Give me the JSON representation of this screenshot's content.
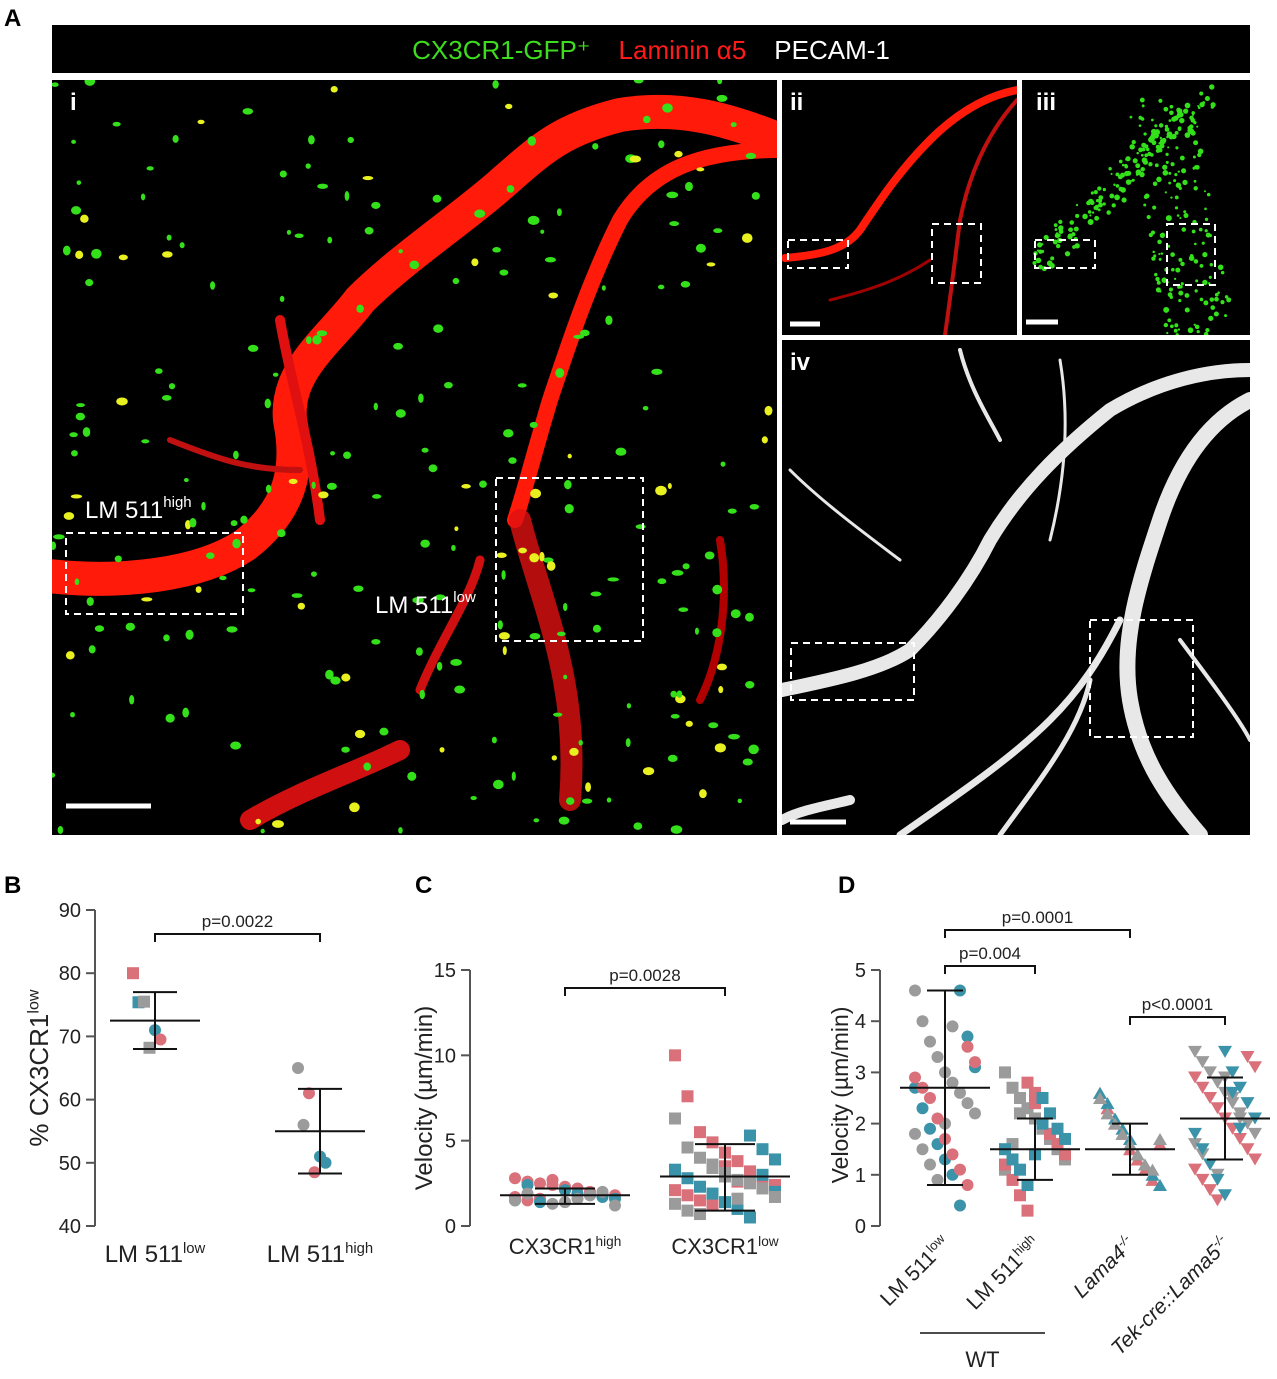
{
  "panel_labels": [
    "A",
    "B",
    "C",
    "D"
  ],
  "figure_a": {
    "legend": [
      {
        "text": "CX3CR1-GFP⁺",
        "color": "#3ddc1e"
      },
      {
        "text": "Laminin α5",
        "color": "#ff1a1a"
      },
      {
        "text": "PECAM-1",
        "color": "#ffffff"
      }
    ],
    "subpanels": [
      "i",
      "ii",
      "iii",
      "iv"
    ],
    "annotations": [
      {
        "text": "LM 511",
        "sup": "high"
      },
      {
        "text": "LM 511",
        "sup": "low"
      }
    ]
  },
  "chart_data": [
    {
      "type": "dot",
      "ylabel": {
        "text": "% CX3CR1",
        "sup": "low"
      },
      "ylim": [
        40,
        90
      ],
      "yticks": [
        40,
        50,
        60,
        70,
        80,
        90
      ],
      "groups": [
        {
          "label": {
            "text": "LM 511",
            "sup": "low"
          },
          "mean": 72.5,
          "sd": [
            68,
            77
          ],
          "series": [
            {
              "color": "#d9707a",
              "shape": "square",
              "values": [
                80
              ]
            },
            {
              "color": "#3a93a8",
              "shape": "square",
              "values": [
                75.4
              ]
            },
            {
              "color": "#9b9b9b",
              "shape": "square",
              "values": [
                75.5,
                68.2
              ]
            },
            {
              "color": "#3a93a8",
              "shape": "circle",
              "values": [
                71
              ]
            },
            {
              "color": "#d9707a",
              "shape": "circle",
              "values": [
                69.5
              ]
            }
          ]
        },
        {
          "label": {
            "text": "LM 511",
            "sup": "high"
          },
          "mean": 55,
          "sd": [
            48.3,
            61.7
          ],
          "series": [
            {
              "color": "#9b9b9b",
              "shape": "circle",
              "values": [
                65,
                56
              ]
            },
            {
              "color": "#d9707a",
              "shape": "circle",
              "values": [
                61,
                48.5
              ]
            },
            {
              "color": "#3a93a8",
              "shape": "circle",
              "values": [
                51,
                50
              ]
            }
          ]
        }
      ],
      "brackets": [
        {
          "label": "p=0.0022",
          "from": 0,
          "to": 1
        }
      ]
    },
    {
      "type": "dot",
      "ylabel": {
        "text": "Velocity (µm/min)"
      },
      "ylim": [
        0,
        15
      ],
      "yticks": [
        0,
        5,
        10,
        15
      ],
      "groups": [
        {
          "label": {
            "text": "CX3CR1",
            "sup": "high"
          },
          "mean": 1.8,
          "sd": [
            1.3,
            2.2
          ],
          "series": [
            {
              "color": "#d9707a",
              "shape": "circle",
              "values": [
                2.8,
                2.6,
                2.5,
                2.4,
                2.3,
                2.2,
                2.0,
                1.9,
                1.8,
                1.7,
                1.5,
                1.6,
                2.7
              ]
            },
            {
              "color": "#3a93a8",
              "shape": "circle",
              "values": [
                2.1,
                1.9,
                1.8,
                1.7,
                1.6,
                1.5,
                2.4,
                1.4
              ]
            },
            {
              "color": "#9b9b9b",
              "shape": "circle",
              "values": [
                1.3,
                1.4,
                1.6,
                1.8,
                2.0,
                1.2,
                1.5,
                1.9
              ]
            }
          ]
        },
        {
          "label": {
            "text": "CX3CR1",
            "sup": "low"
          },
          "mean": 2.9,
          "sd": [
            0.9,
            4.8
          ],
          "series": [
            {
              "color": "#d9707a",
              "shape": "square",
              "values": [
                10,
                7.6,
                5.5,
                4.9,
                4.3,
                3.8,
                3.2,
                2.9,
                2.4,
                2.1,
                1.8,
                1.5,
                1.2,
                3.5,
                2.6
              ]
            },
            {
              "color": "#3a93a8",
              "shape": "square",
              "values": [
                5.3,
                4.5,
                3.9,
                3.3,
                2.8,
                2.3,
                1.9,
                1.4,
                1.0,
                0.5,
                3.0,
                2.0
              ]
            },
            {
              "color": "#9b9b9b",
              "shape": "square",
              "values": [
                6.3,
                4.6,
                4.0,
                3.6,
                3.1,
                2.7,
                2.5,
                2.2,
                1.7,
                1.3,
                0.9,
                0.7,
                3.4,
                2.9,
                1.6
              ]
            }
          ]
        }
      ],
      "brackets": [
        {
          "label": "p=0.0028",
          "from": 0,
          "to": 1
        }
      ]
    },
    {
      "type": "dot",
      "ylabel": {
        "text": "Velocity (µm/min)"
      },
      "ylim": [
        0,
        5
      ],
      "yticks": [
        0,
        1,
        2,
        3,
        4,
        5
      ],
      "groups": [
        {
          "label": {
            "text": "LM 511",
            "sup": "low"
          },
          "mean": 2.7,
          "sd": [
            0.8,
            4.6
          ],
          "series": [
            {
              "color": "#9b9b9b",
              "shape": "circle",
              "values": [
                4.6,
                4.0,
                3.6,
                3.3,
                3.0,
                2.8,
                2.6,
                2.4,
                2.2,
                1.8,
                1.5,
                1.2,
                0.9,
                2.0,
                3.9
              ]
            },
            {
              "color": "#3a93a8",
              "shape": "circle",
              "values": [
                4.6,
                3.7,
                3.1,
                2.7,
                2.3,
                1.9,
                1.6,
                1.3,
                1.0,
                0.4
              ]
            },
            {
              "color": "#d9707a",
              "shape": "circle",
              "values": [
                3.5,
                3.2,
                2.9,
                2.7,
                2.5,
                2.1,
                1.7,
                1.4,
                1.1,
                0.8
              ]
            }
          ]
        },
        {
          "label": {
            "text": "LM 511",
            "sup": "high"
          },
          "mean": 1.5,
          "sd": [
            0.9,
            2.1
          ],
          "series": [
            {
              "color": "#9b9b9b",
              "shape": "square",
              "values": [
                3.0,
                2.7,
                2.5,
                2.3,
                2.1,
                1.9,
                1.7,
                1.5,
                1.3,
                1.1,
                1.6,
                2.2
              ]
            },
            {
              "color": "#d9707a",
              "shape": "square",
              "values": [
                2.8,
                2.4,
                2.0,
                1.8,
                1.6,
                1.4,
                1.2,
                0.9,
                0.6,
                0.3,
                2.6
              ]
            },
            {
              "color": "#3a93a8",
              "shape": "square",
              "values": [
                2.5,
                2.2,
                1.9,
                1.7,
                1.5,
                1.3,
                1.1,
                0.8,
                1.4,
                2.0
              ]
            }
          ]
        },
        {
          "label": {
            "text": "Lama4",
            "sup": "-/-",
            "italic": true
          },
          "mean": 1.5,
          "sd": [
            1.0,
            2.0
          ],
          "series": [
            {
              "color": "#d9707a",
              "shape": "triangle-up",
              "values": [
                2.6,
                2.3,
                2.0,
                1.8,
                1.5,
                1.3,
                1.1,
                0.9,
                1.6
              ]
            },
            {
              "color": "#3a93a8",
              "shape": "triangle-up",
              "values": [
                2.6,
                2.4,
                2.1,
                1.9,
                1.7,
                1.4,
                1.2,
                1.0,
                0.8
              ]
            },
            {
              "color": "#9b9b9b",
              "shape": "triangle-up",
              "values": [
                2.5,
                2.2,
                2.0,
                1.8,
                1.6,
                1.4,
                1.2,
                1.1,
                1.7
              ]
            }
          ]
        },
        {
          "label": {
            "text": "Tek-cre::Lama5",
            "sup": "-/-",
            "italic": true
          },
          "mean": 2.1,
          "sd": [
            1.3,
            2.9
          ],
          "series": [
            {
              "color": "#9b9b9b",
              "shape": "triangle-down",
              "values": [
                3.4,
                3.2,
                3.0,
                2.8,
                2.6,
                2.4,
                2.2,
                2.0,
                1.8,
                1.6,
                1.4,
                1.2,
                1.0,
                2.9,
                2.5,
                2.1
              ]
            },
            {
              "color": "#d9707a",
              "shape": "triangle-down",
              "values": [
                3.3,
                3.1,
                2.9,
                2.7,
                2.5,
                2.3,
                2.1,
                1.9,
                1.7,
                1.5,
                1.3,
                1.1,
                0.9,
                0.7,
                0.5
              ]
            },
            {
              "color": "#3a93a8",
              "shape": "triangle-down",
              "values": [
                3.4,
                3.0,
                2.7,
                2.4,
                2.1,
                1.8,
                1.5,
                1.2,
                0.9,
                0.6,
                2.6,
                1.9
              ]
            }
          ]
        }
      ],
      "brackets": [
        {
          "label": "p=0.0001",
          "from": 0,
          "to": 2
        },
        {
          "label": "p=0.004",
          "from": 0,
          "to": 1
        },
        {
          "label": "p<0.0001",
          "from": 2,
          "to": 3
        }
      ],
      "group_label": {
        "text": "WT",
        "from": 0,
        "to": 1
      }
    }
  ]
}
